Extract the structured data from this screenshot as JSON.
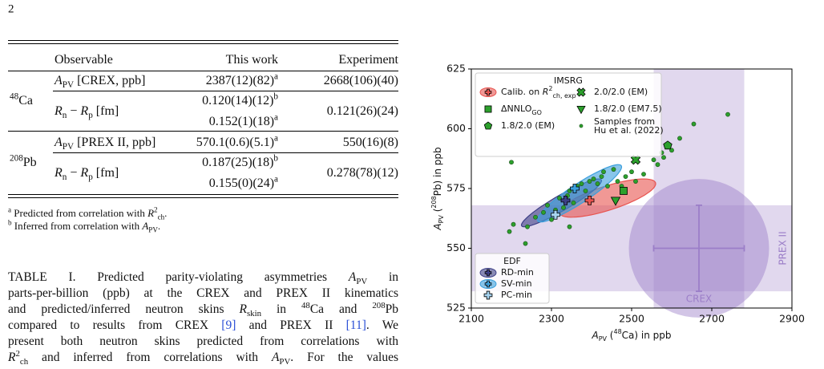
{
  "page_number": "2",
  "table": {
    "header": [
      "Observable",
      "This work",
      "Experiment"
    ],
    "groups": [
      {
        "label": [
          {
            "text": "48",
            "style": "sup"
          },
          "Ca"
        ],
        "rows": [
          {
            "observable": [
              {
                "text": "A",
                "style": "i"
              },
              {
                "text": "PV",
                "style": "sub"
              },
              " [CREX, ppb]"
            ],
            "this_work": [
              [
                "2387(12)(82)",
                {
                  "text": "a",
                  "style": "sup"
                }
              ]
            ],
            "experiment": "2668(106)(40)"
          },
          {
            "observable": [
              {
                "text": "R",
                "style": "i"
              },
              {
                "text": "n",
                "style": "sub"
              },
              " − ",
              {
                "text": "R",
                "style": "i"
              },
              {
                "text": "p",
                "style": "sub"
              },
              " [fm]"
            ],
            "this_work": [
              [
                "0.120(14)(12)",
                {
                  "text": "b",
                  "style": "sup"
                }
              ],
              [
                "0.152(1)(18)",
                {
                  "text": "a",
                  "style": "sup"
                }
              ]
            ],
            "experiment": "0.121(26)(24)"
          }
        ]
      },
      {
        "label": [
          {
            "text": "208",
            "style": "sup"
          },
          "Pb"
        ],
        "rows": [
          {
            "observable": [
              {
                "text": "A",
                "style": "i"
              },
              {
                "text": "PV",
                "style": "sub"
              },
              " [PREX II, ppb]"
            ],
            "this_work": [
              [
                "570.1(0.6)(5.1)",
                {
                  "text": "a",
                  "style": "sup"
                }
              ]
            ],
            "experiment": "550(16)(8)"
          },
          {
            "observable": [
              {
                "text": "R",
                "style": "i"
              },
              {
                "text": "n",
                "style": "sub"
              },
              " − ",
              {
                "text": "R",
                "style": "i"
              },
              {
                "text": "p",
                "style": "sub"
              },
              " [fm]"
            ],
            "this_work": [
              [
                "0.187(25)(18)",
                {
                  "text": "b",
                  "style": "sup"
                }
              ],
              [
                "0.155(0)(24)",
                {
                  "text": "a",
                  "style": "sup"
                }
              ]
            ],
            "experiment": "0.278(78)(12)"
          }
        ]
      }
    ],
    "footnotes": [
      [
        {
          "text": "a",
          "style": "sup"
        },
        " Predicted from correlation with ",
        {
          "text": "R",
          "style": "i"
        },
        {
          "text": "2",
          "style": "sup"
        },
        {
          "text": "ch",
          "style": "sub"
        },
        "."
      ],
      [
        {
          "text": "b",
          "style": "sup"
        },
        " Inferred from correlation with ",
        {
          "text": "A",
          "style": "i"
        },
        {
          "text": "PV",
          "style": "sub"
        },
        "."
      ]
    ]
  },
  "caption": [
    [
      "TABLE I. Predicted parity-violating asymmetries ",
      {
        "text": "A",
        "style": "i"
      },
      {
        "text": "PV",
        "style": "sub"
      },
      " in"
    ],
    [
      "parts-per-billion (ppb) at the CREX and PREX II kinematics"
    ],
    [
      "and predicted/inferred neutron skins ",
      {
        "text": "R",
        "style": "i"
      },
      {
        "text": "skin",
        "style": "sub"
      },
      " in ",
      {
        "text": "48",
        "style": "sup"
      },
      "Ca and ",
      {
        "text": "208",
        "style": "sup"
      },
      "Pb"
    ],
    [
      "compared to results from CREX ",
      {
        "text": "[9]",
        "style": "link"
      },
      " and PREX II ",
      {
        "text": "[11]",
        "style": "link"
      },
      ". We"
    ],
    [
      "present both neutron skins predicted from correlations with"
    ],
    [
      {
        "text": "R",
        "style": "i"
      },
      {
        "text": "2",
        "style": "sup"
      },
      {
        "text": "ch",
        "style": "sub"
      },
      " and inferred from correlations with ",
      {
        "text": "A",
        "style": "i"
      },
      {
        "text": "PV",
        "style": "sub"
      },
      ". For the values"
    ]
  ],
  "chart_data": {
    "type": "scatter",
    "xlabel": [
      {
        "text": "A",
        "style": "i"
      },
      {
        "text": "PV",
        "style": "sub"
      },
      " (",
      {
        "text": "48",
        "style": "sup"
      },
      "Ca) in ppb"
    ],
    "ylabel": [
      {
        "text": "A",
        "style": "i"
      },
      {
        "text": "PV",
        "style": "sub"
      },
      " (",
      {
        "text": "208",
        "style": "sup"
      },
      "Pb) in ppb"
    ],
    "xlim": [
      2100,
      2900
    ],
    "xticks": [
      2100,
      2300,
      2500,
      2700,
      2900
    ],
    "ylim": [
      525,
      625
    ],
    "yticks": [
      525,
      550,
      575,
      600,
      625
    ],
    "experiment": {
      "x": 2668,
      "x_err": 113,
      "y": 550,
      "y_err": 18,
      "x_radius": 175,
      "y_radius": 29,
      "color": "#9b7ec8",
      "x_label": "CREX",
      "y_label": "PREX II"
    },
    "legends": [
      {
        "title": "IMSRG",
        "corner": "upper left",
        "series": [
          {
            "name": [
              "Calib. on ",
              {
                "text": "R",
                "style": "i"
              },
              {
                "text": "2",
                "style": "sup"
              },
              {
                "text": "ch, exp",
                "style": "sub"
              }
            ],
            "color": "#e8534f",
            "marker": "plus",
            "x": 2395,
            "y": 570,
            "ellipse": {
              "x": 2440,
              "y": 571,
              "x_spread": 120,
              "y_spread": 8,
              "corr": 0.75
            }
          },
          {
            "name": [
              "ΔNNLO",
              {
                "text": "GO",
                "style": "sub"
              }
            ],
            "color": "#2ca02c",
            "marker": "square",
            "x": 2480,
            "y": 574
          },
          {
            "name": "1.8/2.0 (EM)",
            "color": "#2ca02c",
            "marker": "pentagon",
            "x": 2590,
            "y": 593
          },
          {
            "name": "2.0/2.0 (EM)",
            "color": "#2ca02c",
            "marker": "x",
            "x": 2510,
            "y": 587
          },
          {
            "name": "1.8/2.0 (EM7.5)",
            "color": "#2ca02c",
            "marker": "triangle-down",
            "x": 2460,
            "y": 570
          },
          {
            "name_lines": [
              "Samples from",
              "Hu et al. (2022)"
            ],
            "color": "#2ca02c",
            "marker": "circle",
            "x": [
              2200,
              2195,
              2205,
              2235,
              2240,
              2260,
              2280,
              2290,
              2300,
              2310,
              2320,
              2330,
              2340,
              2345,
              2355,
              2365,
              2375,
              2385,
              2395,
              2405,
              2415,
              2425,
              2430,
              2440,
              2455,
              2465,
              2475,
              2485,
              2500,
              2510,
              2530,
              2555,
              2565,
              2575,
              2580,
              2600,
              2620,
              2655,
              2740,
              2345
            ],
            "y": [
              586,
              557,
              560,
              552,
              559,
              563,
              565,
              568,
              562,
              566,
              571,
              567,
              572,
              574,
              569,
              576,
              577,
              574,
              578,
              579,
              577,
              580,
              582,
              576,
              583,
              578,
              576,
              580,
              582,
              578,
              581,
              587,
              585,
              590,
              588,
              591,
              596,
              602,
              606,
              559
            ]
          }
        ]
      },
      {
        "title": "EDF",
        "corner": "lower left",
        "series": [
          {
            "name": "RD-min",
            "color": "#3d3f86",
            "marker": "plus",
            "x": 2335,
            "y": 570,
            "ellipse": {
              "x": 2325,
              "y": 569,
              "x_spread": 100,
              "y_spread": 10,
              "corr": 0.93
            }
          },
          {
            "name": "SV-min",
            "color": "#3b9fdc",
            "marker": "plus",
            "x": 2358,
            "y": 575,
            "ellipse": {
              "x": 2370,
              "y": 573,
              "x_spread": 105,
              "y_spread": 12,
              "corr": 0.92
            }
          },
          {
            "name": "PC-min",
            "color": "#a7d4f0",
            "marker": "plus",
            "x": 2310,
            "y": 564
          }
        ]
      }
    ]
  }
}
